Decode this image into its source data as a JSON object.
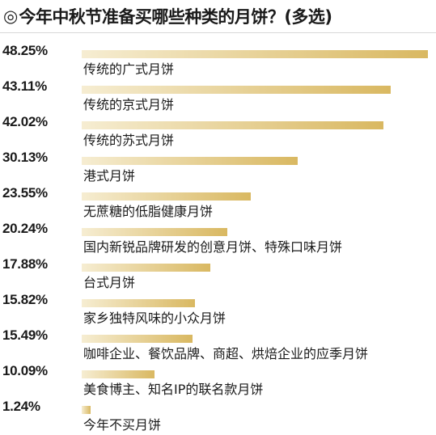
{
  "title": {
    "marker": "◎",
    "text": "今年中秋节准备买哪些种类的月饼？(多选)"
  },
  "colors": {
    "bar_start": "#f6edd2",
    "bar_end": "#d9b861",
    "text": "#1a1a1a"
  },
  "chart_data": {
    "type": "bar",
    "orientation": "horizontal",
    "unit": "%",
    "xlim": [
      0,
      48.25
    ],
    "grid": false,
    "categories": [
      "传统的广式月饼",
      "传统的京式月饼",
      "传统的苏式月饼",
      "港式月饼",
      "无蔗糖的低脂健康月饼",
      "国内新锐品牌研发的创意月饼、特殊口味月饼",
      "台式月饼",
      "家乡独特风味的小众月饼",
      "咖啡企业、餐饮品牌、商超、烘焙企业的应季月饼",
      "美食博主、知名IP的联名款月饼",
      "今年不买月饼"
    ],
    "values": [
      48.25,
      43.11,
      42.02,
      30.13,
      23.55,
      20.24,
      17.88,
      15.82,
      15.49,
      10.09,
      1.24
    ],
    "value_labels": [
      "48.25%",
      "43.11%",
      "42.02%",
      "30.13%",
      "23.55%",
      "20.24%",
      "17.88%",
      "15.82%",
      "15.49%",
      "10.09%",
      "1.24%"
    ]
  }
}
